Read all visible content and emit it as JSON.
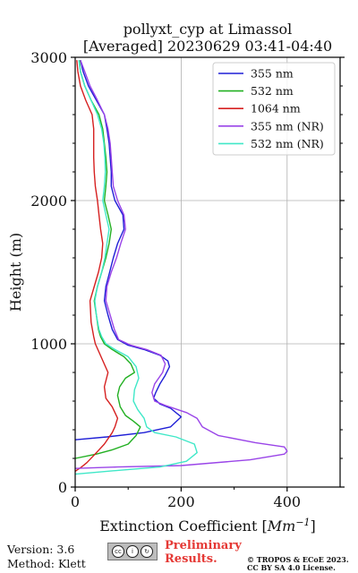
{
  "chart_data": {
    "type": "line",
    "title_line1": "pollyxt_cyp at Limassol",
    "title_line2": "[Averaged] 20230629 03:41-04:40",
    "xlabel_prefix": "Extinction Coefficient [",
    "xlabel_unit": "Mm",
    "xlabel_exp": "−1",
    "xlabel_suffix": "]",
    "ylabel": "Height (m)",
    "xlim": [
      0,
      500
    ],
    "ylim": [
      0,
      3000
    ],
    "xticks": [
      0,
      200,
      400
    ],
    "yticks": [
      0,
      1000,
      2000,
      3000
    ],
    "grid": true,
    "legend_position": "top-right",
    "series": [
      {
        "name": "355 nm",
        "color": "#1f1fd6",
        "points": [
          [
            0,
            330
          ],
          [
            60,
            350
          ],
          [
            130,
            380
          ],
          [
            180,
            420
          ],
          [
            200,
            490
          ],
          [
            180,
            550
          ],
          [
            160,
            580
          ],
          [
            148,
            620
          ],
          [
            152,
            660
          ],
          [
            160,
            720
          ],
          [
            170,
            780
          ],
          [
            178,
            840
          ],
          [
            175,
            880
          ],
          [
            160,
            920
          ],
          [
            130,
            960
          ],
          [
            100,
            990
          ],
          [
            80,
            1030
          ],
          [
            70,
            1100
          ],
          [
            62,
            1200
          ],
          [
            55,
            1300
          ],
          [
            58,
            1400
          ],
          [
            65,
            1500
          ],
          [
            72,
            1600
          ],
          [
            80,
            1700
          ],
          [
            92,
            1800
          ],
          [
            90,
            1900
          ],
          [
            75,
            2000
          ],
          [
            68,
            2100
          ],
          [
            68,
            2200
          ],
          [
            66,
            2300
          ],
          [
            64,
            2400
          ],
          [
            60,
            2500
          ],
          [
            55,
            2600
          ],
          [
            40,
            2700
          ],
          [
            25,
            2800
          ],
          [
            15,
            2900
          ],
          [
            10,
            2980
          ]
        ]
      },
      {
        "name": "532 nm",
        "color": "#22b022",
        "points": [
          [
            0,
            200
          ],
          [
            40,
            230
          ],
          [
            70,
            260
          ],
          [
            100,
            300
          ],
          [
            115,
            360
          ],
          [
            123,
            420
          ],
          [
            110,
            460
          ],
          [
            95,
            500
          ],
          [
            85,
            560
          ],
          [
            80,
            640
          ],
          [
            84,
            700
          ],
          [
            95,
            760
          ],
          [
            112,
            800
          ],
          [
            105,
            860
          ],
          [
            92,
            910
          ],
          [
            70,
            960
          ],
          [
            55,
            1000
          ],
          [
            48,
            1050
          ],
          [
            44,
            1100
          ],
          [
            40,
            1200
          ],
          [
            36,
            1300
          ],
          [
            42,
            1400
          ],
          [
            50,
            1500
          ],
          [
            58,
            1600
          ],
          [
            64,
            1700
          ],
          [
            68,
            1800
          ],
          [
            62,
            1900
          ],
          [
            55,
            2000
          ],
          [
            58,
            2100
          ],
          [
            60,
            2200
          ],
          [
            58,
            2300
          ],
          [
            55,
            2400
          ],
          [
            52,
            2500
          ],
          [
            45,
            2600
          ],
          [
            30,
            2700
          ],
          [
            18,
            2800
          ],
          [
            10,
            2900
          ],
          [
            8,
            2980
          ]
        ]
      },
      {
        "name": "1064 nm",
        "color": "#d62020",
        "points": [
          [
            0,
            110
          ],
          [
            12,
            140
          ],
          [
            22,
            170
          ],
          [
            35,
            220
          ],
          [
            55,
            300
          ],
          [
            70,
            380
          ],
          [
            75,
            420
          ],
          [
            80,
            480
          ],
          [
            70,
            560
          ],
          [
            58,
            620
          ],
          [
            55,
            700
          ],
          [
            62,
            800
          ],
          [
            50,
            900
          ],
          [
            38,
            1000
          ],
          [
            35,
            1050
          ],
          [
            30,
            1150
          ],
          [
            28,
            1300
          ],
          [
            36,
            1400
          ],
          [
            44,
            1500
          ],
          [
            50,
            1600
          ],
          [
            52,
            1700
          ],
          [
            48,
            1800
          ],
          [
            45,
            1900
          ],
          [
            42,
            2000
          ],
          [
            38,
            2100
          ],
          [
            36,
            2200
          ],
          [
            35,
            2300
          ],
          [
            35,
            2400
          ],
          [
            35,
            2500
          ],
          [
            32,
            2600
          ],
          [
            20,
            2700
          ],
          [
            10,
            2800
          ],
          [
            5,
            2900
          ],
          [
            3,
            2980
          ]
        ]
      },
      {
        "name": "355 nm (NR)",
        "color": "#9a45e8",
        "points": [
          [
            0,
            130
          ],
          [
            80,
            140
          ],
          [
            200,
            150
          ],
          [
            330,
            190
          ],
          [
            395,
            230
          ],
          [
            400,
            250
          ],
          [
            395,
            280
          ],
          [
            340,
            310
          ],
          [
            270,
            360
          ],
          [
            240,
            420
          ],
          [
            230,
            480
          ],
          [
            210,
            520
          ],
          [
            170,
            570
          ],
          [
            150,
            600
          ],
          [
            145,
            660
          ],
          [
            150,
            720
          ],
          [
            165,
            800
          ],
          [
            170,
            860
          ],
          [
            162,
            920
          ],
          [
            135,
            960
          ],
          [
            105,
            990
          ],
          [
            82,
            1030
          ],
          [
            74,
            1100
          ],
          [
            66,
            1200
          ],
          [
            58,
            1300
          ],
          [
            60,
            1400
          ],
          [
            68,
            1500
          ],
          [
            78,
            1600
          ],
          [
            86,
            1700
          ],
          [
            95,
            1800
          ],
          [
            92,
            1900
          ],
          [
            80,
            2000
          ],
          [
            72,
            2100
          ],
          [
            70,
            2200
          ],
          [
            68,
            2300
          ],
          [
            66,
            2400
          ],
          [
            62,
            2500
          ],
          [
            55,
            2600
          ],
          [
            42,
            2700
          ],
          [
            28,
            2800
          ],
          [
            18,
            2900
          ],
          [
            10,
            2980
          ]
        ]
      },
      {
        "name": "532 nm (NR)",
        "color": "#40e8c8",
        "points": [
          [
            0,
            90
          ],
          [
            60,
            110
          ],
          [
            160,
            140
          ],
          [
            210,
            180
          ],
          [
            230,
            240
          ],
          [
            225,
            300
          ],
          [
            190,
            350
          ],
          [
            150,
            380
          ],
          [
            135,
            420
          ],
          [
            130,
            480
          ],
          [
            118,
            540
          ],
          [
            110,
            600
          ],
          [
            112,
            680
          ],
          [
            120,
            760
          ],
          [
            115,
            840
          ],
          [
            100,
            910
          ],
          [
            75,
            960
          ],
          [
            58,
            1000
          ],
          [
            50,
            1050
          ],
          [
            45,
            1100
          ],
          [
            40,
            1200
          ],
          [
            37,
            1300
          ],
          [
            42,
            1400
          ],
          [
            50,
            1500
          ],
          [
            56,
            1600
          ],
          [
            60,
            1700
          ],
          [
            64,
            1800
          ],
          [
            58,
            1900
          ],
          [
            52,
            2000
          ],
          [
            55,
            2100
          ],
          [
            57,
            2200
          ],
          [
            56,
            2300
          ],
          [
            54,
            2400
          ],
          [
            50,
            2500
          ],
          [
            42,
            2600
          ],
          [
            30,
            2700
          ],
          [
            18,
            2800
          ],
          [
            10,
            2900
          ],
          [
            7,
            2980
          ]
        ]
      }
    ]
  },
  "footer": {
    "version": "Version: 3.6",
    "method": "Method: Klett",
    "badge_text": "BY SA",
    "preliminary_line1": "Preliminary",
    "preliminary_line2": "Results.",
    "license_line1": "© TROPOS & ECoE 2023.",
    "license_line2": "CC BY SA 4.0 License."
  }
}
